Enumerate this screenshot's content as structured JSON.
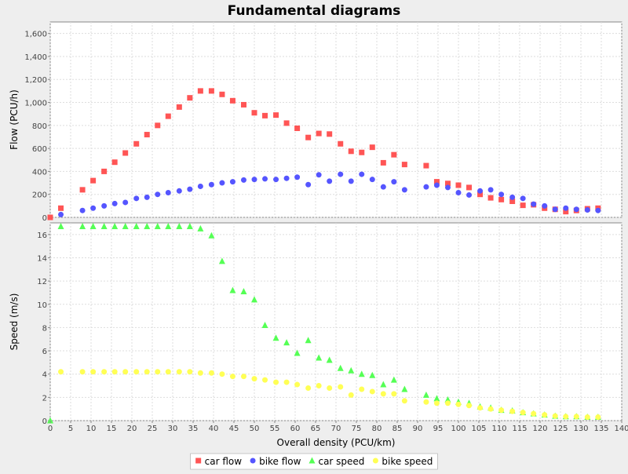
{
  "chart_data": {
    "type": "scatter",
    "title": "Fundamental diagrams",
    "xlabel": "Overall density (PCU/km)",
    "xlim": [
      0,
      140
    ],
    "x_ticks": [
      0,
      5,
      10,
      15,
      20,
      25,
      30,
      35,
      40,
      45,
      50,
      55,
      60,
      65,
      70,
      75,
      80,
      85,
      90,
      95,
      100,
      105,
      110,
      115,
      120,
      125,
      130,
      135,
      140
    ],
    "grid": true,
    "legend_position": "bottom",
    "background": "#ffffff",
    "panels": [
      {
        "ylabel": "Flow (PCU/h)",
        "ylim": [
          0,
          1700
        ],
        "y_ticks": [
          0,
          200,
          400,
          600,
          800,
          1000,
          1200,
          1400,
          1600
        ],
        "y_tick_labels": [
          "0",
          "200",
          "400",
          "600",
          "800",
          "1,000",
          "1,200",
          "1,400",
          "1,600"
        ],
        "series": [
          {
            "name": "car flow",
            "marker": "square",
            "color": "#ff5555",
            "points": [
              [
                0,
                0
              ],
              [
                2.6,
                80
              ],
              [
                7.9,
                240
              ],
              [
                10.5,
                320
              ],
              [
                13.2,
                400
              ],
              [
                15.8,
                480
              ],
              [
                18.4,
                560
              ],
              [
                21.1,
                640
              ],
              [
                23.7,
                720
              ],
              [
                26.3,
                800
              ],
              [
                28.9,
                880
              ],
              [
                31.6,
                960
              ],
              [
                34.2,
                1040
              ],
              [
                36.8,
                1100
              ],
              [
                39.5,
                1100
              ],
              [
                42.1,
                1070
              ],
              [
                44.7,
                1015
              ],
              [
                47.4,
                980
              ],
              [
                50,
                910
              ],
              [
                52.6,
                885
              ],
              [
                55.3,
                890
              ],
              [
                57.9,
                820
              ],
              [
                60.5,
                775
              ],
              [
                63.2,
                695
              ],
              [
                65.8,
                730
              ],
              [
                68.4,
                725
              ],
              [
                71.1,
                640
              ],
              [
                73.7,
                575
              ],
              [
                76.3,
                565
              ],
              [
                78.9,
                610
              ],
              [
                81.6,
                475
              ],
              [
                84.2,
                545
              ],
              [
                86.8,
                460
              ],
              [
                92.1,
                450
              ],
              [
                94.7,
                310
              ],
              [
                97.4,
                295
              ],
              [
                100,
                280
              ],
              [
                102.6,
                260
              ],
              [
                105.3,
                200
              ],
              [
                107.9,
                170
              ],
              [
                110.5,
                155
              ],
              [
                113.2,
                140
              ],
              [
                115.8,
                105
              ],
              [
                118.4,
                110
              ],
              [
                121.1,
                80
              ],
              [
                123.7,
                70
              ],
              [
                126.3,
                50
              ],
              [
                128.9,
                60
              ],
              [
                131.6,
                75
              ],
              [
                134.2,
                80
              ]
            ]
          },
          {
            "name": "bike flow",
            "marker": "circle",
            "color": "#5555ff",
            "points": [
              [
                2.6,
                25
              ],
              [
                7.9,
                60
              ],
              [
                10.5,
                80
              ],
              [
                13.2,
                100
              ],
              [
                15.8,
                120
              ],
              [
                18.4,
                130
              ],
              [
                21.1,
                165
              ],
              [
                23.7,
                175
              ],
              [
                26.3,
                200
              ],
              [
                28.9,
                215
              ],
              [
                31.6,
                230
              ],
              [
                34.2,
                245
              ],
              [
                36.8,
                270
              ],
              [
                39.5,
                285
              ],
              [
                42.1,
                300
              ],
              [
                44.7,
                310
              ],
              [
                47.4,
                325
              ],
              [
                50,
                330
              ],
              [
                52.6,
                335
              ],
              [
                55.3,
                330
              ],
              [
                57.9,
                340
              ],
              [
                60.5,
                350
              ],
              [
                63.2,
                285
              ],
              [
                65.8,
                370
              ],
              [
                68.4,
                315
              ],
              [
                71.1,
                375
              ],
              [
                73.7,
                315
              ],
              [
                76.3,
                375
              ],
              [
                78.9,
                330
              ],
              [
                81.6,
                265
              ],
              [
                84.2,
                310
              ],
              [
                86.8,
                240
              ],
              [
                92.1,
                265
              ],
              [
                94.7,
                280
              ],
              [
                97.4,
                260
              ],
              [
                100,
                215
              ],
              [
                102.6,
                195
              ],
              [
                105.3,
                230
              ],
              [
                107.9,
                240
              ],
              [
                110.5,
                200
              ],
              [
                113.2,
                175
              ],
              [
                115.8,
                165
              ],
              [
                118.4,
                115
              ],
              [
                121.1,
                100
              ],
              [
                123.7,
                70
              ],
              [
                126.3,
                80
              ],
              [
                128.9,
                70
              ],
              [
                131.6,
                65
              ],
              [
                134.2,
                60
              ]
            ]
          }
        ]
      },
      {
        "ylabel": "Speed (m/s)",
        "ylim": [
          0,
          17
        ],
        "y_ticks": [
          0,
          2,
          4,
          6,
          8,
          10,
          12,
          14,
          16
        ],
        "y_tick_labels": [
          "0",
          "2",
          "4",
          "6",
          "8",
          "10",
          "12",
          "14",
          "16"
        ],
        "series": [
          {
            "name": "car speed",
            "marker": "triangle",
            "color": "#55ff55",
            "points": [
              [
                0,
                0
              ],
              [
                2.6,
                16.7
              ],
              [
                7.9,
                16.7
              ],
              [
                10.5,
                16.7
              ],
              [
                13.2,
                16.7
              ],
              [
                15.8,
                16.7
              ],
              [
                18.4,
                16.7
              ],
              [
                21.1,
                16.7
              ],
              [
                23.7,
                16.7
              ],
              [
                26.3,
                16.7
              ],
              [
                28.9,
                16.7
              ],
              [
                31.6,
                16.7
              ],
              [
                34.2,
                16.7
              ],
              [
                36.8,
                16.5
              ],
              [
                39.5,
                15.9
              ],
              [
                42.1,
                13.7
              ],
              [
                44.7,
                11.2
              ],
              [
                47.4,
                11.1
              ],
              [
                50,
                10.4
              ],
              [
                52.6,
                8.2
              ],
              [
                55.3,
                7.1
              ],
              [
                57.9,
                6.7
              ],
              [
                60.5,
                5.8
              ],
              [
                63.2,
                6.9
              ],
              [
                65.8,
                5.4
              ],
              [
                68.4,
                5.2
              ],
              [
                71.1,
                4.5
              ],
              [
                73.7,
                4.3
              ],
              [
                76.3,
                4
              ],
              [
                78.9,
                3.9
              ],
              [
                81.6,
                3.1
              ],
              [
                84.2,
                3.5
              ],
              [
                86.8,
                2.7
              ],
              [
                92.1,
                2.2
              ],
              [
                94.7,
                1.9
              ],
              [
                97.4,
                1.8
              ],
              [
                100,
                1.6
              ],
              [
                102.6,
                1.5
              ],
              [
                105.3,
                1.2
              ],
              [
                107.9,
                1.1
              ],
              [
                110.5,
                0.9
              ],
              [
                113.2,
                0.85
              ],
              [
                115.8,
                0.7
              ],
              [
                118.4,
                0.6
              ],
              [
                121.1,
                0.5
              ],
              [
                123.7,
                0.4
              ],
              [
                126.3,
                0.35
              ],
              [
                128.9,
                0.35
              ],
              [
                131.6,
                0.3
              ],
              [
                134.2,
                0.3
              ]
            ]
          },
          {
            "name": "bike speed",
            "marker": "circle",
            "color": "#ffff55",
            "points": [
              [
                2.6,
                4.2
              ],
              [
                7.9,
                4.2
              ],
              [
                10.5,
                4.2
              ],
              [
                13.2,
                4.2
              ],
              [
                15.8,
                4.2
              ],
              [
                18.4,
                4.2
              ],
              [
                21.1,
                4.2
              ],
              [
                23.7,
                4.2
              ],
              [
                26.3,
                4.2
              ],
              [
                28.9,
                4.2
              ],
              [
                31.6,
                4.2
              ],
              [
                34.2,
                4.2
              ],
              [
                36.8,
                4.1
              ],
              [
                39.5,
                4.1
              ],
              [
                42.1,
                4
              ],
              [
                44.7,
                3.8
              ],
              [
                47.4,
                3.8
              ],
              [
                50,
                3.6
              ],
              [
                52.6,
                3.5
              ],
              [
                55.3,
                3.3
              ],
              [
                57.9,
                3.3
              ],
              [
                60.5,
                3.1
              ],
              [
                63.2,
                2.8
              ],
              [
                65.8,
                3
              ],
              [
                68.4,
                2.8
              ],
              [
                71.1,
                2.9
              ],
              [
                73.7,
                2.2
              ],
              [
                76.3,
                2.7
              ],
              [
                78.9,
                2.5
              ],
              [
                81.6,
                2.3
              ],
              [
                84.2,
                2.3
              ],
              [
                86.8,
                1.7
              ],
              [
                92.1,
                1.6
              ],
              [
                94.7,
                1.5
              ],
              [
                97.4,
                1.5
              ],
              [
                100,
                1.4
              ],
              [
                102.6,
                1.3
              ],
              [
                105.3,
                1.1
              ],
              [
                107.9,
                1
              ],
              [
                110.5,
                0.9
              ],
              [
                113.2,
                0.8
              ],
              [
                115.8,
                0.7
              ],
              [
                118.4,
                0.6
              ],
              [
                121.1,
                0.5
              ],
              [
                123.7,
                0.4
              ],
              [
                126.3,
                0.35
              ],
              [
                128.9,
                0.35
              ],
              [
                131.6,
                0.3
              ],
              [
                134.2,
                0.3
              ]
            ]
          }
        ]
      }
    ]
  }
}
